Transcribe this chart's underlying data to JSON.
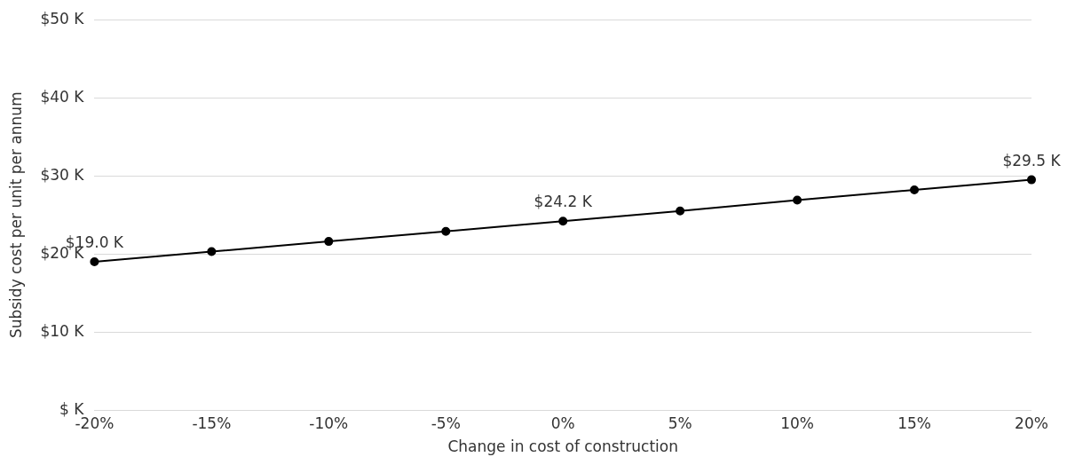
{
  "chart_data": {
    "type": "line",
    "xlabel": "Change in cost of construction",
    "ylabel": "Subsidy cost per unit per annum",
    "categories": [
      "-20%",
      "-15%",
      "-10%",
      "-5%",
      "0%",
      "5%",
      "10%",
      "15%",
      "20%"
    ],
    "series": [
      {
        "color": "#000000",
        "values": [
          19.0,
          20.3,
          21.6,
          22.9,
          24.2,
          25.5,
          26.9,
          28.2,
          29.5
        ],
        "value_labels": [
          "$19.0 K",
          null,
          null,
          null,
          "$24.2 K",
          null,
          null,
          null,
          "$29.5 K"
        ]
      }
    ],
    "ylim": [
      0,
      50
    ],
    "yticks": [
      {
        "value": 0,
        "label": "$ K"
      },
      {
        "value": 10,
        "label": "$10 K"
      },
      {
        "value": 20,
        "label": "$20 K"
      },
      {
        "value": 30,
        "label": "$30 K"
      },
      {
        "value": 40,
        "label": "$40 K"
      },
      {
        "value": 50,
        "label": "$50 K"
      }
    ],
    "grid": "y",
    "legend": false,
    "marker": "circle",
    "line_style": "solid"
  }
}
